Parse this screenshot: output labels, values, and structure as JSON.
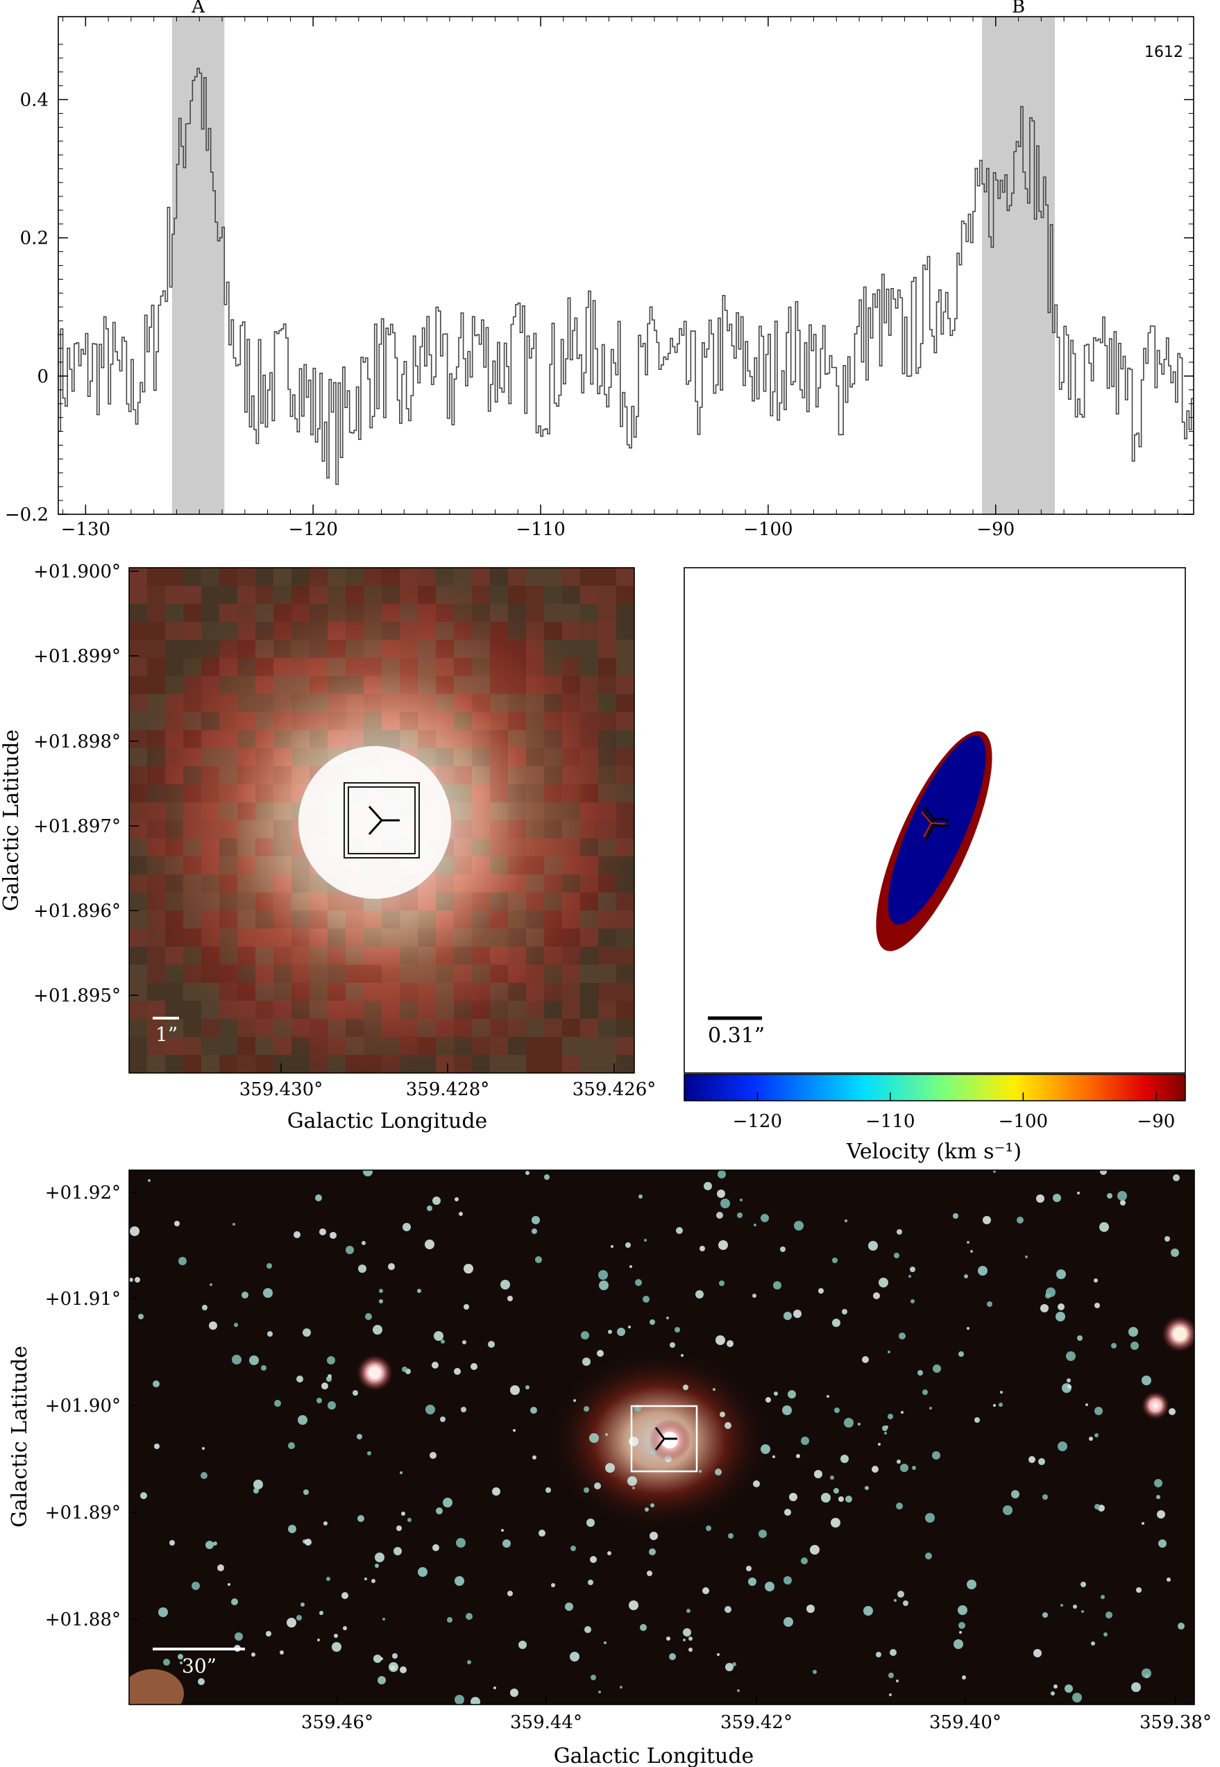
{
  "chart_data": [
    {
      "type": "line",
      "panel": "spectrum",
      "title": "",
      "xlabel": "",
      "ylabel": "",
      "annotation": "1612",
      "xlim": [
        -131.2,
        -81.3
      ],
      "ylim": [
        -0.2,
        0.52
      ],
      "x_ticks": [
        -130,
        -120,
        -110,
        -100,
        -90
      ],
      "x_tick_labels": [
        "−130",
        "−120",
        "−110",
        "−100",
        "−90"
      ],
      "y_ticks": [
        -0.2,
        0,
        0.2,
        0.4
      ],
      "y_tick_labels": [
        "−0.2",
        "0",
        "0.2",
        "0.4"
      ],
      "regions": [
        {
          "label": "A",
          "x": [
            -126.2,
            -123.9
          ]
        },
        {
          "label": "B",
          "x": [
            -90.6,
            -87.4
          ]
        }
      ],
      "series": [
        {
          "x": [
            -131.2,
            -129.0,
            -128.0,
            -127.0,
            -126.3,
            -126.0,
            -125.6,
            -125.2,
            -124.9,
            -124.6,
            -124.3,
            -123.9,
            -123.5,
            -122.5,
            -121.0,
            -120.0,
            -119.0,
            -118.0,
            -117.0,
            -116.0,
            -115.0,
            -114.0,
            -113.0,
            -112.0,
            -111.0,
            -110.0,
            -109.0,
            -108.0,
            -107.0,
            -106.0,
            -105.0,
            -104.0,
            -103.0,
            -102.0,
            -101.0,
            -100.0,
            -99.0,
            -98.0,
            -97.0,
            -96.0,
            -95.0,
            -94.0,
            -93.0,
            -92.0,
            -91.0,
            -90.5,
            -90.0,
            -89.5,
            -89.0,
            -88.6,
            -88.2,
            -87.8,
            -87.4,
            -86.5,
            -85.0,
            -84.0,
            -83.0,
            -82.0,
            -81.3
          ],
          "y": [
            0.0,
            0.02,
            -0.03,
            0.05,
            0.2,
            0.28,
            0.38,
            0.46,
            0.4,
            0.3,
            0.22,
            0.12,
            0.05,
            -0.03,
            0.02,
            -0.05,
            -0.08,
            -0.02,
            0.02,
            -0.04,
            0.05,
            -0.02,
            0.06,
            0.01,
            0.04,
            -0.02,
            0.03,
            0.05,
            0.02,
            -0.03,
            0.04,
            0.01,
            -0.02,
            0.05,
            0.02,
            0.0,
            0.04,
            0.02,
            -0.03,
            0.06,
            0.08,
            0.05,
            0.1,
            0.13,
            0.22,
            0.25,
            0.26,
            0.3,
            0.38,
            0.33,
            0.29,
            0.2,
            0.08,
            -0.03,
            0.02,
            -0.05,
            0.03,
            0.0,
            -0.12
          ]
        }
      ]
    },
    {
      "type": "heatmap",
      "panel": "zoomed-image",
      "xlabel": "Galactic Longitude",
      "ylabel": "Galactic Latitude",
      "x_tick_labels": [
        "359.430°",
        "359.428°",
        "359.426°"
      ],
      "y_tick_labels": [
        "+01.900°",
        "+01.899°",
        "+01.898°",
        "+01.897°",
        "+01.896°",
        "+01.895°"
      ],
      "scale_bar_label": "1”"
    },
    {
      "type": "scatter",
      "panel": "maser-positions",
      "xlabel": "Velocity (km s⁻¹)",
      "colorbar_ticks": [
        -120,
        -110,
        -100,
        -90
      ],
      "colorbar_tick_labels": [
        "−120",
        "−110",
        "−100",
        "−90"
      ],
      "colorbar_range": [
        -125.5,
        -87.8
      ],
      "ellipses": [
        {
          "color": "#8b0000",
          "velocity": -88.2
        },
        {
          "color": "#000090",
          "velocity": -125.0
        }
      ],
      "scale_bar_label": "0.31”"
    },
    {
      "type": "heatmap",
      "panel": "wide-image",
      "xlabel": "Galactic Longitude",
      "ylabel": "Galactic Latitude",
      "x_tick_labels": [
        "359.46°",
        "359.44°",
        "359.42°",
        "359.40°",
        "359.38°"
      ],
      "y_tick_labels": [
        "+01.92°",
        "+01.91°",
        "+01.90°",
        "+01.89°",
        "+01.88°"
      ],
      "scale_bar_label": "30”"
    }
  ],
  "colors": {
    "shade": "#cccccc",
    "spectrum_line": "#444444",
    "dark_red": "#8b0000",
    "navy": "#000090"
  }
}
